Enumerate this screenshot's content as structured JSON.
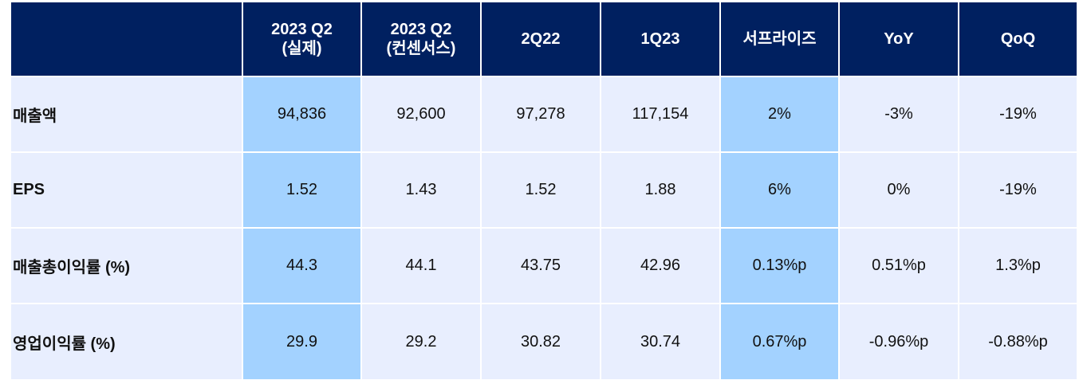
{
  "table": {
    "columns": [
      "",
      "2023 Q2\n(실제)",
      "2023 Q2\n(컨센서스)",
      "2Q22",
      "1Q23",
      "서프라이즈",
      "YoY",
      "QoQ"
    ],
    "highlight_color": "#a3d2ff",
    "header_color": "#002060",
    "row_bg_color": "#e8eefe",
    "rows": [
      {
        "label": "매출액",
        "cells": [
          "94,836",
          "92,600",
          "97,278",
          "117,154",
          "2%",
          "-3%",
          "-19%"
        ]
      },
      {
        "label": "EPS",
        "cells": [
          "1.52",
          "1.43",
          "1.52",
          "1.88",
          "6%",
          "0%",
          "-19%"
        ]
      },
      {
        "label": "매출총이익률 (%)",
        "cells": [
          "44.3",
          "44.1",
          "43.75",
          "42.96",
          "0.13%p",
          "0.51%p",
          "1.3%p"
        ]
      },
      {
        "label": "영업이익률 (%)",
        "cells": [
          "29.9",
          "29.2",
          "30.82",
          "30.74",
          "0.67%p",
          "-0.96%p",
          "-0.88%p"
        ]
      }
    ]
  }
}
